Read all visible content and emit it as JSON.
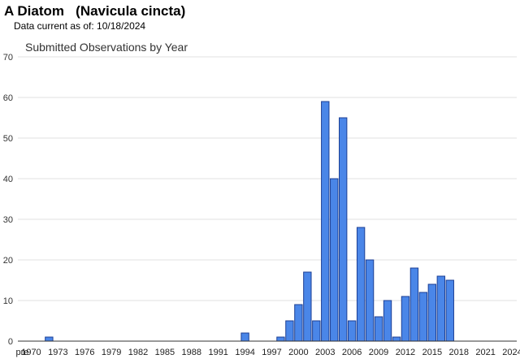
{
  "header": {
    "species_title": "A Diatom   (Navicula cincta)",
    "data_current": "Data current as of: 10/18/2024"
  },
  "colors": {
    "bar_fill": "#4a86e8",
    "bar_stroke": "#1c3f94",
    "grid": "#e0e0e0",
    "axis": "#333333"
  },
  "chart_data": {
    "type": "bar",
    "title": "Submitted Observations by Year",
    "xlabel": "",
    "ylabel": "",
    "ylim": [
      0,
      70
    ],
    "yticks": [
      0,
      10,
      20,
      30,
      40,
      50,
      60,
      70
    ],
    "grid": true,
    "legend": "none",
    "tick_labels": [
      "pre",
      "1970",
      "1973",
      "1976",
      "1979",
      "1982",
      "1985",
      "1988",
      "1991",
      "1994",
      "1997",
      "2000",
      "2003",
      "2006",
      "2009",
      "2012",
      "2015",
      "2018",
      "2021",
      "2024"
    ],
    "categories": [
      "pre",
      "1970",
      "1971",
      "1972",
      "1973",
      "1974",
      "1975",
      "1976",
      "1977",
      "1978",
      "1979",
      "1980",
      "1981",
      "1982",
      "1983",
      "1984",
      "1985",
      "1986",
      "1987",
      "1988",
      "1989",
      "1990",
      "1991",
      "1992",
      "1993",
      "1994",
      "1995",
      "1996",
      "1997",
      "1998",
      "1999",
      "2000",
      "2001",
      "2002",
      "2003",
      "2004",
      "2005",
      "2006",
      "2007",
      "2008",
      "2009",
      "2010",
      "2011",
      "2012",
      "2013",
      "2014",
      "2015",
      "2016",
      "2017",
      "2018",
      "2019",
      "2020",
      "2021",
      "2022",
      "2023",
      "2024"
    ],
    "values": [
      0,
      0,
      0,
      1,
      0,
      0,
      0,
      0,
      0,
      0,
      0,
      0,
      0,
      0,
      0,
      0,
      0,
      0,
      0,
      0,
      0,
      0,
      0,
      0,
      0,
      2,
      0,
      0,
      0,
      1,
      5,
      9,
      17,
      5,
      59,
      40,
      55,
      5,
      28,
      20,
      6,
      10,
      1,
      11,
      18,
      12,
      14,
      16,
      15,
      0,
      0,
      0,
      0,
      0,
      0,
      0
    ]
  }
}
